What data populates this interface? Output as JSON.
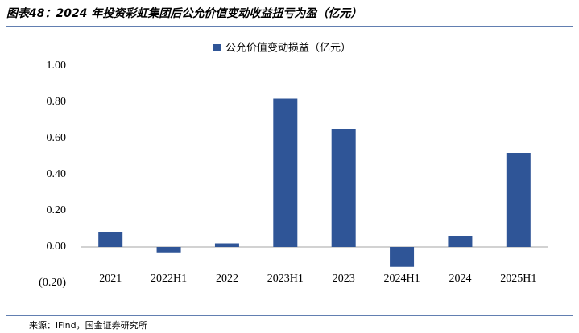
{
  "chart_data": {
    "type": "bar",
    "title": "图表48：2024 年投资彩虹集团后公允价值变动收益扭亏为盈（亿元）",
    "source": "来源：iFind，国金证券研究所",
    "categories": [
      "2021",
      "2022H1",
      "2022",
      "2023H1",
      "2023",
      "2024H1",
      "2024",
      "2025H1"
    ],
    "series": [
      {
        "name": "公允价值变动损益（亿元）",
        "color": "#2f5597",
        "values": [
          0.08,
          -0.03,
          0.02,
          0.82,
          0.65,
          -0.11,
          0.06,
          0.52
        ]
      }
    ],
    "ylim": [
      -0.2,
      1.0
    ],
    "yticks": [
      {
        "value": -0.2,
        "label": "(0.20)"
      },
      {
        "value": 0,
        "label": "0.00"
      },
      {
        "value": 0.2,
        "label": "0.20"
      },
      {
        "value": 0.4,
        "label": "0.40"
      },
      {
        "value": 0.6,
        "label": "0.60"
      },
      {
        "value": 0.8,
        "label": "0.80"
      },
      {
        "value": 1.0,
        "label": "1.00"
      }
    ],
    "negative_tick_color": "#c00000",
    "grid": false,
    "legend": "top"
  }
}
